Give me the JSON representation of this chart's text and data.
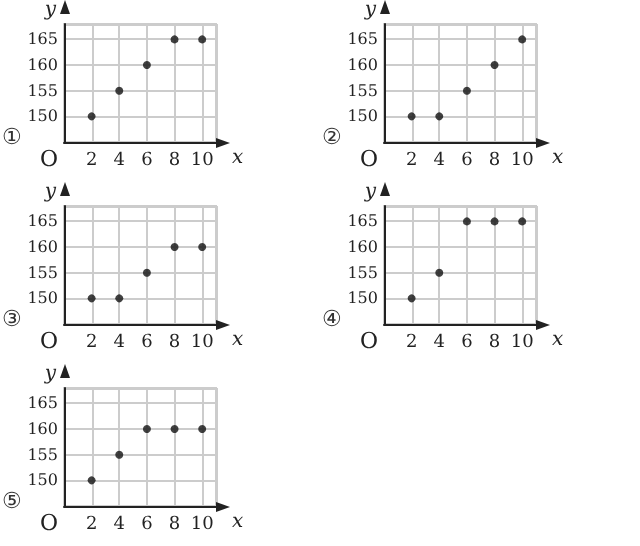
{
  "chart_data": [
    {
      "type": "scatter",
      "title": "①",
      "xlabel": "x",
      "ylabel": "y",
      "annotations": [
        "O"
      ],
      "x": [
        2,
        4,
        6,
        8,
        10
      ],
      "values": [
        150,
        155,
        160,
        165,
        165
      ],
      "color": "#111111",
      "marker": "circle",
      "xlim": [
        0,
        11
      ],
      "ylim": [
        145,
        168
      ],
      "xticks": [
        2,
        4,
        6,
        8,
        10
      ],
      "yticks": [
        150,
        155,
        160,
        165
      ],
      "grid": true
    },
    {
      "type": "scatter",
      "title": "②",
      "xlabel": "x",
      "ylabel": "y",
      "annotations": [
        "O"
      ],
      "x": [
        2,
        4,
        6,
        8,
        10
      ],
      "values": [
        150,
        150,
        155,
        160,
        165
      ],
      "color": "#111111",
      "marker": "circle",
      "xlim": [
        0,
        11
      ],
      "ylim": [
        145,
        168
      ],
      "xticks": [
        2,
        4,
        6,
        8,
        10
      ],
      "yticks": [
        150,
        155,
        160,
        165
      ],
      "grid": true
    },
    {
      "type": "scatter",
      "title": "③",
      "xlabel": "x",
      "ylabel": "y",
      "annotations": [
        "O"
      ],
      "x": [
        2,
        4,
        6,
        8,
        10
      ],
      "values": [
        150,
        150,
        155,
        160,
        160
      ],
      "color": "#111111",
      "marker": "circle",
      "xlim": [
        0,
        11
      ],
      "ylim": [
        145,
        168
      ],
      "xticks": [
        2,
        4,
        6,
        8,
        10
      ],
      "yticks": [
        150,
        155,
        160,
        165
      ],
      "grid": true
    },
    {
      "type": "scatter",
      "title": "④",
      "xlabel": "x",
      "ylabel": "y",
      "annotations": [
        "O"
      ],
      "x": [
        2,
        4,
        6,
        8,
        10
      ],
      "values": [
        150,
        155,
        165,
        165,
        165
      ],
      "color": "#111111",
      "marker": "circle",
      "xlim": [
        0,
        11
      ],
      "ylim": [
        145,
        168
      ],
      "xticks": [
        2,
        4,
        6,
        8,
        10
      ],
      "yticks": [
        150,
        155,
        160,
        165
      ],
      "grid": true
    },
    {
      "type": "scatter",
      "title": "⑤",
      "xlabel": "x",
      "ylabel": "y",
      "annotations": [
        "O"
      ],
      "x": [
        2,
        4,
        6,
        8,
        10
      ],
      "values": [
        150,
        155,
        160,
        160,
        160
      ],
      "color": "#111111",
      "marker": "circle",
      "xlim": [
        0,
        11
      ],
      "ylim": [
        145,
        168
      ],
      "xticks": [
        2,
        4,
        6,
        8,
        10
      ],
      "yticks": [
        150,
        155,
        160,
        165
      ],
      "grid": true
    }
  ]
}
